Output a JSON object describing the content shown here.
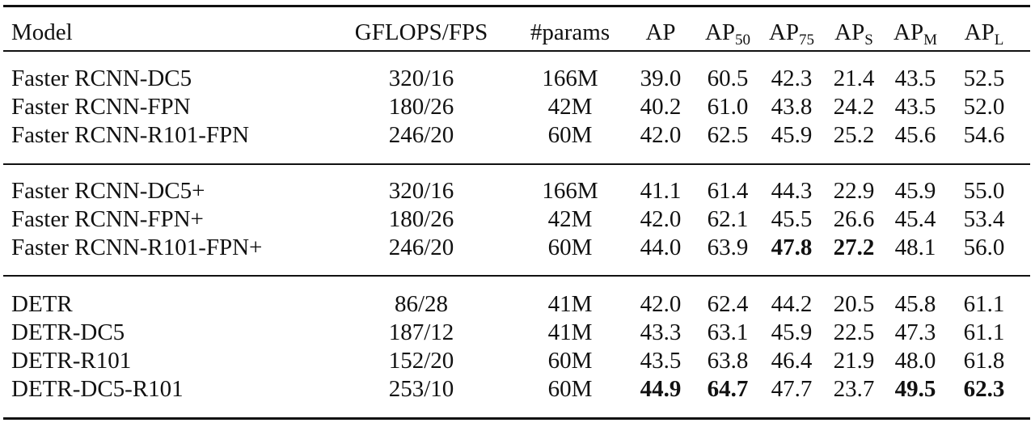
{
  "table": {
    "header": [
      {
        "text": "Model"
      },
      {
        "text": "GFLOPS/FPS"
      },
      {
        "text": "#params"
      },
      {
        "text": "AP"
      },
      {
        "text": "AP",
        "sub": "50"
      },
      {
        "text": "AP",
        "sub": "75"
      },
      {
        "text": "AP",
        "sub": "S"
      },
      {
        "text": "AP",
        "sub": "M"
      },
      {
        "text": "AP",
        "sub": "L"
      }
    ],
    "groups": [
      {
        "rows": [
          [
            "Faster RCNN-DC5",
            "320/16",
            "166M",
            "39.0",
            "60.5",
            "42.3",
            "21.4",
            "43.5",
            "52.5"
          ],
          [
            "Faster RCNN-FPN",
            "180/26",
            "42M",
            "40.2",
            "61.0",
            "43.8",
            "24.2",
            "43.5",
            "52.0"
          ],
          [
            "Faster RCNN-R101-FPN",
            "246/20",
            "60M",
            "42.0",
            "62.5",
            "45.9",
            "25.2",
            "45.6",
            "54.6"
          ]
        ]
      },
      {
        "rows": [
          [
            "Faster RCNN-DC5+",
            "320/16",
            "166M",
            "41.1",
            "61.4",
            "44.3",
            "22.9",
            "45.9",
            "55.0"
          ],
          [
            "Faster RCNN-FPN+",
            "180/26",
            "42M",
            "42.0",
            "62.1",
            "45.5",
            "26.6",
            "45.4",
            "53.4"
          ],
          [
            "Faster RCNN-R101-FPN+",
            "246/20",
            "60M",
            "44.0",
            "63.9",
            {
              "text": "47.8",
              "bold": true
            },
            {
              "text": "27.2",
              "bold": true
            },
            "48.1",
            "56.0"
          ]
        ]
      },
      {
        "rows": [
          [
            "DETR",
            "86/28",
            "41M",
            "42.0",
            "62.4",
            "44.2",
            "20.5",
            "45.8",
            "61.1"
          ],
          [
            "DETR-DC5",
            "187/12",
            "41M",
            "43.3",
            "63.1",
            "45.9",
            "22.5",
            "47.3",
            "61.1"
          ],
          [
            "DETR-R101",
            "152/20",
            "60M",
            "43.5",
            "63.8",
            "46.4",
            "21.9",
            "48.0",
            "61.8"
          ],
          [
            "DETR-DC5-R101",
            "253/10",
            "60M",
            {
              "text": "44.9",
              "bold": true
            },
            {
              "text": "64.7",
              "bold": true
            },
            "47.7",
            "23.7",
            {
              "text": "49.5",
              "bold": true
            },
            {
              "text": "62.3",
              "bold": true
            }
          ]
        ]
      }
    ]
  }
}
